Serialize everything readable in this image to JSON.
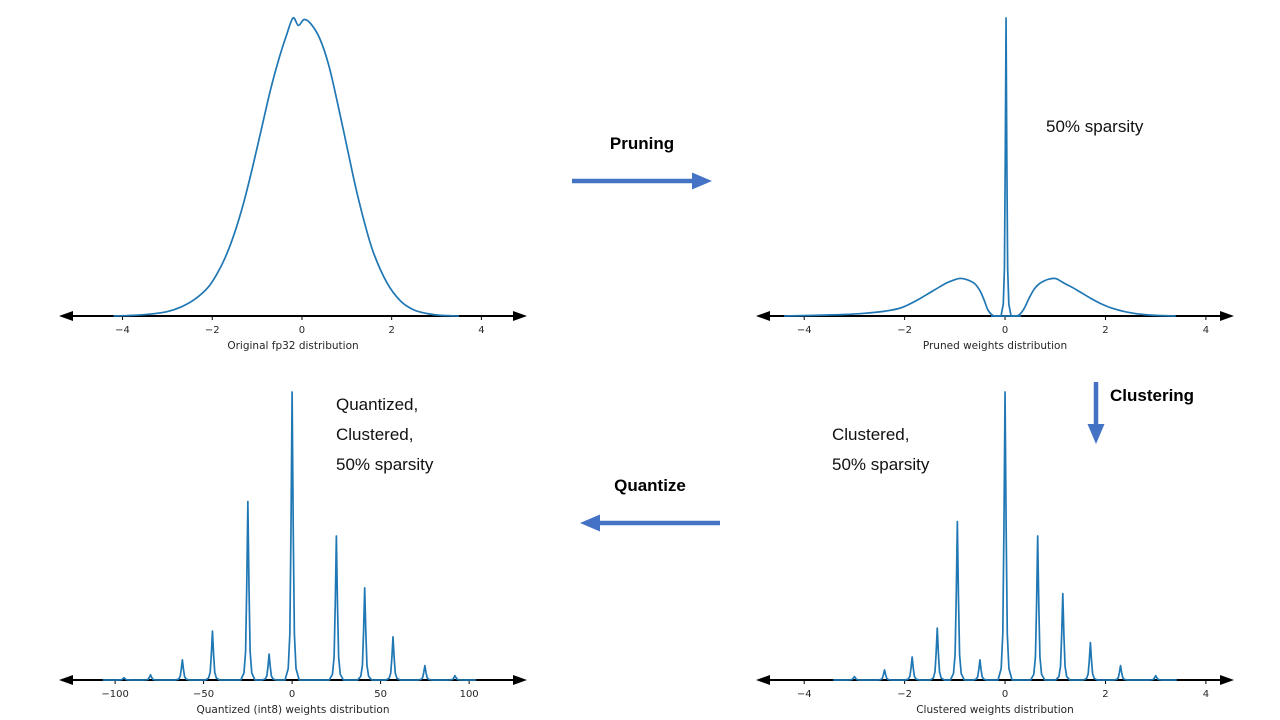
{
  "flow": {
    "pruning_label": "Pruning",
    "clustering_label": "Clustering",
    "quantize_label": "Quantize",
    "arrow_color": "#4472c4"
  },
  "annotations": {
    "pruned_note": "50% sparsity",
    "clustered_note": "Clustered,\n50% sparsity",
    "quantized_note": "Quantized,\nClustered,\n50% sparsity"
  },
  "chart_data": [
    {
      "type": "line",
      "title": "",
      "xlabel": "Original fp32 distribution",
      "ylabel": "",
      "xlim": [
        -5.35,
        4.95
      ],
      "ylim": [
        0,
        1.05
      ],
      "grid": false,
      "legend": false,
      "line_color": "#1f77b4",
      "tick_values": [
        -4,
        -2,
        0,
        2,
        4
      ],
      "tick_labels": [
        "−4",
        "−2",
        "0",
        "2",
        "4"
      ],
      "x": [
        -4.2,
        -3.8,
        -3.4,
        -3.0,
        -2.7,
        -2.4,
        -2.1,
        -1.9,
        -1.7,
        -1.5,
        -1.3,
        -1.1,
        -0.9,
        -0.7,
        -0.5,
        -0.35,
        -0.2,
        -0.08,
        0.05,
        0.2,
        0.4,
        0.6,
        0.8,
        1.0,
        1.2,
        1.4,
        1.6,
        1.9,
        2.2,
        2.5,
        2.8,
        3.1,
        3.5
      ],
      "y": [
        0,
        0.002,
        0.006,
        0.015,
        0.03,
        0.055,
        0.095,
        0.14,
        0.2,
        0.28,
        0.38,
        0.5,
        0.63,
        0.76,
        0.87,
        0.94,
        1.0,
        0.975,
        0.995,
        0.98,
        0.93,
        0.84,
        0.71,
        0.57,
        0.43,
        0.31,
        0.21,
        0.11,
        0.05,
        0.02,
        0.008,
        0.002,
        0
      ]
    },
    {
      "type": "line",
      "title": "",
      "xlabel": "Pruned weights distribution",
      "ylabel": "",
      "xlim": [
        -4.9,
        4.5
      ],
      "ylim": [
        0,
        1.05
      ],
      "grid": false,
      "legend": false,
      "line_color": "#1f77b4",
      "tick_values": [
        -4,
        -2,
        0,
        2,
        4
      ],
      "tick_labels": [
        "−4",
        "−2",
        "0",
        "2",
        "4"
      ],
      "x": [
        -4.4,
        -3.8,
        -3.2,
        -2.8,
        -2.4,
        -2.1,
        -1.9,
        -1.7,
        -1.5,
        -1.3,
        -1.15,
        -1.0,
        -0.9,
        -0.8,
        -0.7,
        -0.6,
        -0.5,
        -0.42,
        -0.34,
        -0.26,
        -0.18,
        0.18,
        0.28,
        0.38,
        0.48,
        0.58,
        0.68,
        0.78,
        0.88,
        1.0,
        1.1,
        1.2,
        1.35,
        1.5,
        1.7,
        1.9,
        2.1,
        2.4,
        2.7,
        3.0,
        3.4
      ],
      "y": [
        0,
        0.002,
        0.005,
        0.009,
        0.016,
        0.026,
        0.04,
        0.058,
        0.078,
        0.098,
        0.112,
        0.122,
        0.126,
        0.124,
        0.118,
        0.108,
        0.085,
        0.055,
        0.02,
        0.004,
        0,
        0,
        0.004,
        0.025,
        0.06,
        0.09,
        0.108,
        0.118,
        0.124,
        0.126,
        0.118,
        0.108,
        0.095,
        0.08,
        0.06,
        0.042,
        0.028,
        0.014,
        0.006,
        0.002,
        0
      ],
      "spikes": [
        [
          0.02,
          1.0
        ]
      ],
      "spike_halfwidth": 0.1
    },
    {
      "type": "line",
      "title": "",
      "xlabel": "Clustered weights distribution",
      "ylabel": "",
      "xlim": [
        -4.9,
        4.5
      ],
      "ylim": [
        0,
        1.05
      ],
      "grid": false,
      "legend": false,
      "line_color": "#1f77b4",
      "tick_values": [
        -4,
        -2,
        0,
        2,
        4
      ],
      "tick_labels": [
        "−4",
        "−2",
        "0",
        "2",
        "4"
      ],
      "spikes": [
        [
          -3.0,
          0.012
        ],
        [
          -2.4,
          0.035
        ],
        [
          -1.85,
          0.08
        ],
        [
          -1.35,
          0.18
        ],
        [
          -0.95,
          0.55
        ],
        [
          -0.5,
          0.07
        ],
        [
          0.0,
          1.0
        ],
        [
          0.65,
          0.5
        ],
        [
          1.15,
          0.3
        ],
        [
          1.7,
          0.13
        ],
        [
          2.3,
          0.05
        ],
        [
          3.0,
          0.015
        ]
      ],
      "spike_halfwidth": 0.14
    },
    {
      "type": "line",
      "title": "",
      "xlabel": "Quantized (int8) weights distribution",
      "ylabel": "",
      "xlim": [
        -130,
        131
      ],
      "ylim": [
        0,
        1.05
      ],
      "grid": false,
      "legend": false,
      "line_color": "#1f77b4",
      "tick_values": [
        -100,
        -50,
        0,
        50,
        100
      ],
      "tick_labels": [
        "−100",
        "−50",
        "0",
        "50",
        "100"
      ],
      "spikes": [
        [
          -95,
          0.008
        ],
        [
          -80,
          0.018
        ],
        [
          -62,
          0.07
        ],
        [
          -45,
          0.17
        ],
        [
          -25,
          0.62
        ],
        [
          -13,
          0.09
        ],
        [
          0,
          1.0
        ],
        [
          25,
          0.5
        ],
        [
          41,
          0.32
        ],
        [
          57,
          0.15
        ],
        [
          75,
          0.05
        ],
        [
          92,
          0.015
        ]
      ],
      "spike_halfwidth": 4
    }
  ]
}
